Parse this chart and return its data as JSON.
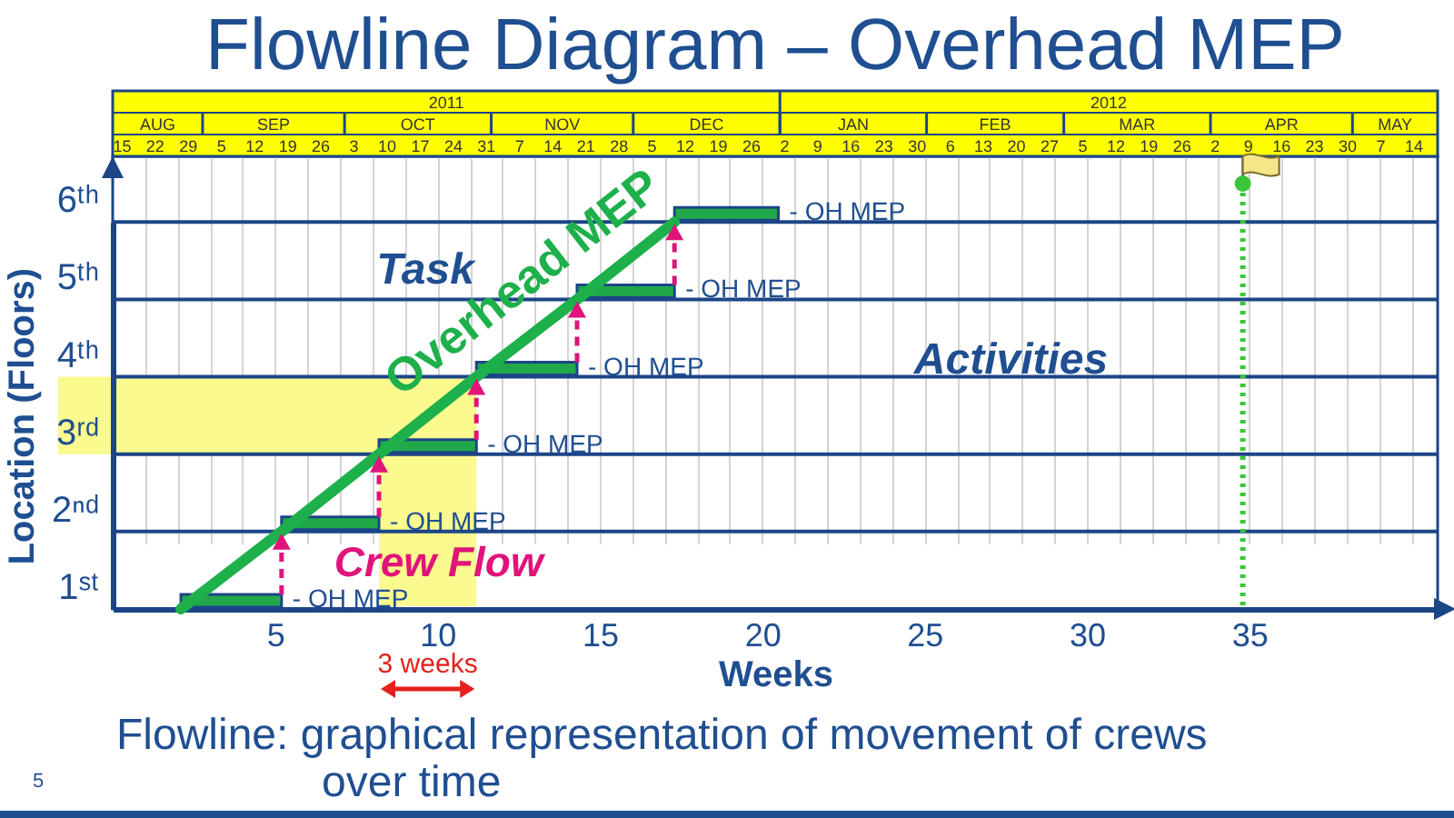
{
  "chart_data": {
    "type": "bar",
    "orientation": "horizontal",
    "title": "Flowline Diagram – Overhead MEP",
    "xlabel": "Weeks",
    "ylabel": "Location (Floors)",
    "categories": [
      "6ᵗʰ",
      "5ᵗʰ",
      "4ᵗʰ",
      "3ʳᵈ",
      "2ⁿᵈ",
      "1ˢᵗ"
    ],
    "series": [
      {
        "color": "#21a84a",
        "base": [
          17.3,
          14.3,
          11.2,
          8.2,
          5.2,
          2.1
        ],
        "values": [
          3.2,
          3,
          3.1,
          3,
          3,
          3.1
        ]
      },
      {
        "type": "line",
        "name": "Overhead MEP",
        "color": "#1eb04b",
        "x": [
          "1ˢᵗ",
          "2ⁿᵈ",
          "3ʳᵈ",
          "4ᵗʰ",
          "5ᵗʰ",
          "6ᵗʰ"
        ],
        "values": [
          2.1,
          5.2,
          8.2,
          11.2,
          14.3,
          17.3
        ]
      }
    ],
    "annotations": [
      {
        "text": "- OH MEP",
        "x": 20.5,
        "y": "6ᵗʰ"
      },
      {
        "text": "- OH MEP",
        "x": 17.3,
        "y": "5ᵗʰ"
      },
      {
        "text": "- OH MEP",
        "x": 14.3,
        "y": "4ᵗʰ"
      },
      {
        "text": "- OH MEP",
        "x": 11.2,
        "y": "3ʳᵈ"
      },
      {
        "text": "- OH MEP",
        "x": 8.2,
        "y": "2ⁿᵈ"
      },
      {
        "text": "- OH MEP",
        "x": 5.2,
        "y": "1ˢᵗ"
      },
      "2011",
      "2012",
      "AUG",
      "SEP",
      "OCT",
      "NOV",
      "DEC",
      "JAN",
      "FEB",
      "MAR",
      "APR",
      "MAY",
      "Task",
      "Activities",
      "Crew Flow",
      "Flowline: graphical representation of movement of crews over time",
      "5"
    ],
    "bands": [
      {
        "axis": "x",
        "from": 8.2,
        "to": 11.2,
        "label": "3 weeks",
        "color": "#fafa8e"
      },
      {
        "axis": "y",
        "from": "3ʳᵈ",
        "to": "4ᵗʰ",
        "color": "#fafa8e"
      }
    ],
    "ref_lines": [
      {
        "axis": "y",
        "value": "6ᵗʰ",
        "color": "#1c4587"
      },
      {
        "axis": "y",
        "value": "5ᵗʰ",
        "color": "#1c4587"
      },
      {
        "axis": "y",
        "value": "4ᵗʰ",
        "color": "#1c4587"
      },
      {
        "axis": "y",
        "value": "3ʳᵈ",
        "color": "#1c4587"
      },
      {
        "axis": "y",
        "value": "2ⁿᵈ",
        "color": "#1c4587"
      },
      {
        "axis": "x",
        "value": 34.8,
        "color": "#3cc43c",
        "line_style": "dotted"
      }
    ],
    "xlim": [
      0,
      40.8
    ],
    "xticks": [
      {
        "value": 1,
        "label": null
      },
      {
        "value": 2,
        "label": null
      },
      {
        "value": 3,
        "label": null
      },
      {
        "value": 4,
        "label": null
      },
      5,
      {
        "value": 6,
        "label": null
      },
      {
        "value": 7,
        "label": null
      },
      {
        "value": 8,
        "label": null
      },
      {
        "value": 9,
        "label": null
      },
      10,
      {
        "value": 11,
        "label": null
      },
      {
        "value": 12,
        "label": null
      },
      {
        "value": 13,
        "label": null
      },
      {
        "value": 14,
        "label": null
      },
      15,
      {
        "value": 16,
        "label": null
      },
      {
        "value": 17,
        "label": null
      },
      {
        "value": 18,
        "label": null
      },
      {
        "value": 19,
        "label": null
      },
      20,
      {
        "value": 21,
        "label": null
      },
      {
        "value": 22,
        "label": null
      },
      {
        "value": 23,
        "label": null
      },
      {
        "value": 24,
        "label": null
      },
      25,
      {
        "value": 26,
        "label": null
      },
      {
        "value": 27,
        "label": null
      },
      {
        "value": 28,
        "label": null
      },
      {
        "value": 29,
        "label": null
      },
      30,
      {
        "value": 31,
        "label": null
      },
      {
        "value": 32,
        "label": null
      },
      {
        "value": 33,
        "label": null
      },
      {
        "value": 34,
        "label": null
      },
      35,
      {
        "value": 36,
        "label": null
      },
      {
        "value": 37,
        "label": null
      },
      {
        "value": 38,
        "label": null
      },
      {
        "value": 39,
        "label": null
      },
      {
        "value": 40,
        "label": null
      }
    ],
    "x2lim": [
      "2011-08-13",
      "2012-05-19"
    ],
    "x2ticks": [
      {
        "value": "2011-08-15",
        "label": "15"
      },
      {
        "value": "2011-08-22",
        "label": "22"
      },
      {
        "value": "2011-08-29",
        "label": "29"
      },
      {
        "value": "2011-09-05",
        "label": "5"
      },
      {
        "value": "2011-09-12",
        "label": "12"
      },
      {
        "value": "2011-09-19",
        "label": "19"
      },
      {
        "value": "2011-09-26",
        "label": "26"
      },
      {
        "value": "2011-10-03",
        "label": "3"
      },
      {
        "value": "2011-10-10",
        "label": "10"
      },
      {
        "value": "2011-10-17",
        "label": "17"
      },
      {
        "value": "2011-10-24",
        "label": "24"
      },
      {
        "value": "2011-10-31",
        "label": "31"
      },
      {
        "value": "2011-11-07",
        "label": "7"
      },
      {
        "value": "2011-11-14",
        "label": "14"
      },
      {
        "value": "2011-11-21",
        "label": "21"
      },
      {
        "value": "2011-11-28",
        "label": "28"
      },
      {
        "value": "2011-12-05",
        "label": "5"
      },
      {
        "value": "2011-12-12",
        "label": "12"
      },
      {
        "value": "2011-12-19",
        "label": "19"
      },
      {
        "value": "2011-12-26",
        "label": "26"
      },
      {
        "value": "2012-01-02",
        "label": "2"
      },
      {
        "value": "2012-01-09",
        "label": "9"
      },
      {
        "value": "2012-01-16",
        "label": "16"
      },
      {
        "value": "2012-01-23",
        "label": "23"
      },
      {
        "value": "2012-01-30",
        "label": "30"
      },
      {
        "value": "2012-02-06",
        "label": "6"
      },
      {
        "value": "2012-02-13",
        "label": "13"
      },
      {
        "value": "2012-02-20",
        "label": "20"
      },
      {
        "value": "2012-02-27",
        "label": "27"
      },
      {
        "value": "2012-03-05",
        "label": "5"
      },
      {
        "value": "2012-03-12",
        "label": "12"
      },
      {
        "value": "2012-03-19",
        "label": "19"
      },
      {
        "value": "2012-03-26",
        "label": "26"
      },
      {
        "value": "2012-04-02",
        "label": "2"
      },
      {
        "value": "2012-04-09",
        "label": "9"
      },
      {
        "value": "2012-04-16",
        "label": "16"
      },
      {
        "value": "2012-04-23",
        "label": "23"
      },
      {
        "value": "2012-04-30",
        "label": "30"
      },
      {
        "value": "2012-05-07",
        "label": "7"
      },
      {
        "value": "2012-05-14",
        "label": "14"
      }
    ],
    "grid": "x"
  }
}
